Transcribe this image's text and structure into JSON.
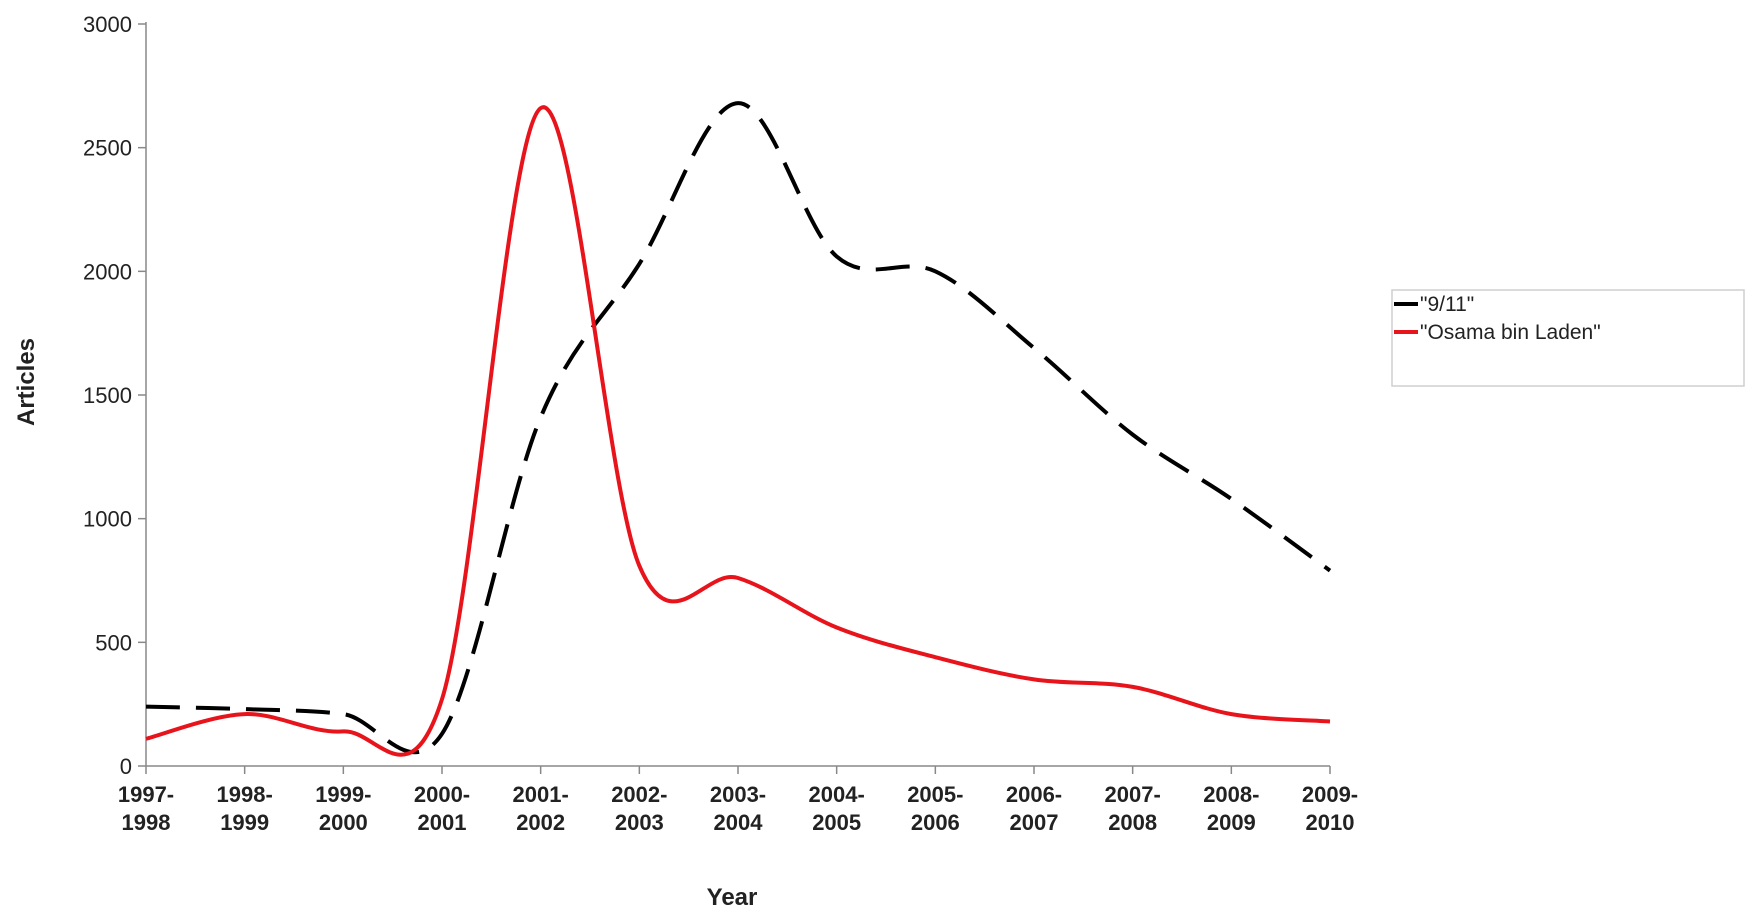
{
  "chart_data": {
    "type": "line",
    "xlabel": "Year",
    "ylabel": "Articles",
    "categories": [
      [
        "1997-",
        "1998"
      ],
      [
        "1998-",
        "1999"
      ],
      [
        "1999-",
        "2000"
      ],
      [
        "2000-",
        "2001"
      ],
      [
        "2001-",
        "2002"
      ],
      [
        "2002-",
        "2003"
      ],
      [
        "2003-",
        "2004"
      ],
      [
        "2004-",
        "2005"
      ],
      [
        "2005-",
        "2006"
      ],
      [
        "2006-",
        "2007"
      ],
      [
        "2007-",
        "2008"
      ],
      [
        "2008-",
        "2009"
      ],
      [
        "2009-",
        "2010"
      ]
    ],
    "ylim": [
      0,
      3000
    ],
    "yticks": [
      "0",
      "500",
      "1000",
      "1500",
      "2000",
      "2500",
      "3000"
    ],
    "legend_position": "right",
    "series": [
      {
        "name": "\"9/11\"",
        "color": "#000000",
        "dash": "dashed",
        "values": [
          240,
          230,
          210,
          130,
          1410,
          2030,
          2680,
          2060,
          2000,
          1690,
          1340,
          1080,
          790
        ]
      },
      {
        "name": "\"Osama bin Laden\"",
        "color": "#e8141c",
        "dash": "solid",
        "values": [
          110,
          210,
          140,
          270,
          2660,
          810,
          760,
          560,
          440,
          350,
          320,
          210,
          180
        ]
      }
    ]
  }
}
